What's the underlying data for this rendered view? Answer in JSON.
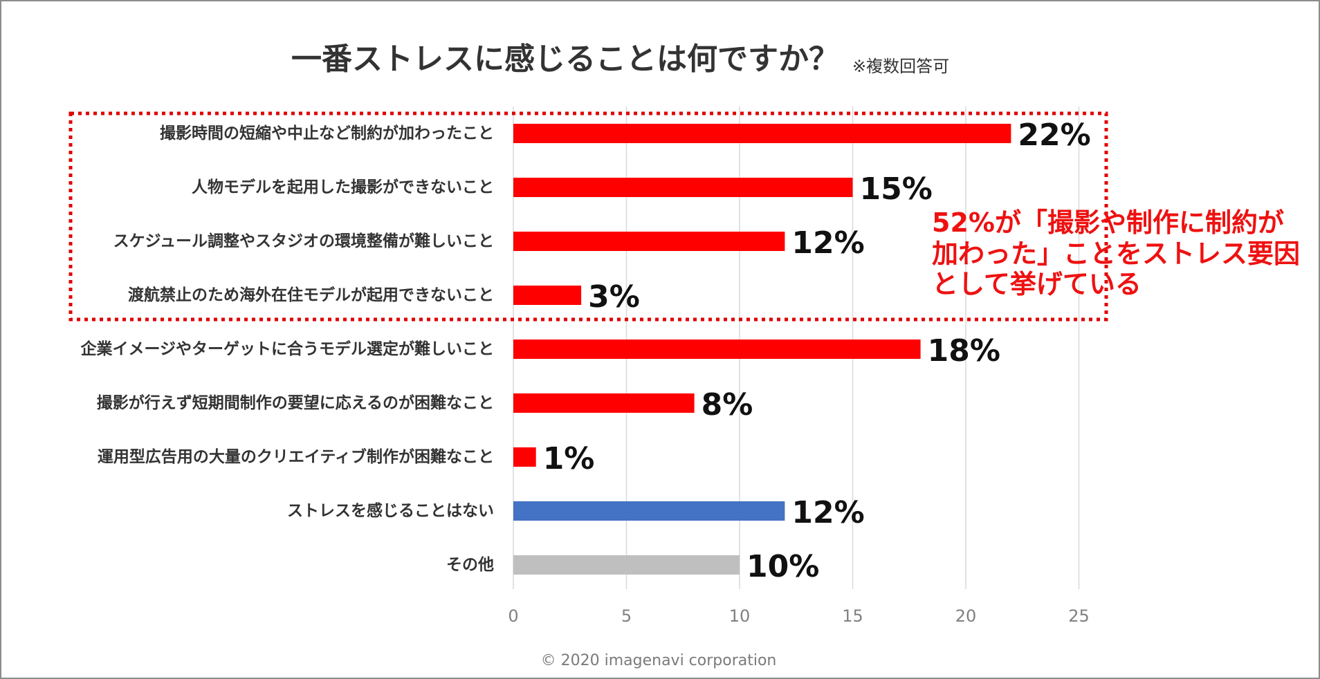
{
  "chart_data": {
    "type": "bar",
    "orientation": "horizontal",
    "title": "一番ストレスに感じることは何ですか？",
    "subtitle": "※複数回答可",
    "categories": [
      "撮影時間の短縮や中止など制約が加わったこと",
      "人物モデルを起用した撮影ができないこと",
      "スケジュール調整やスタジオの環境整備が難しいこと",
      "渡航禁止のため海外在住モデルが起用できないこと",
      "企業イメージやターゲットに合うモデル選定が難しいこと",
      "撮影が行えず短期間制作の要望に応えるのが困難なこと",
      "運用型広告用の大量のクリエイティブ制作が困難なこと",
      "ストレスを感じることはない",
      "その他"
    ],
    "values": [
      22,
      15,
      12,
      3,
      18,
      8,
      1,
      12,
      10
    ],
    "value_labels": [
      "22%",
      "15%",
      "12%",
      "3%",
      "18%",
      "8%",
      "1%",
      "12%",
      "10%"
    ],
    "bar_colors": [
      "#ff0000",
      "#ff0000",
      "#ff0000",
      "#ff0000",
      "#ff0000",
      "#ff0000",
      "#ff0000",
      "#4472c4",
      "#bfbfbf"
    ],
    "xlim": [
      0,
      25
    ],
    "x_ticks": [
      0,
      5,
      10,
      15,
      20,
      25
    ],
    "grid": "vertical",
    "highlight_group": [
      0,
      1,
      2,
      3
    ],
    "highlight_color": "#e00000",
    "annotation": [
      "52%が「撮影や制作に制約が",
      "加わった」ことをストレス要因",
      "として挙げている"
    ],
    "annotation_color": "#ee1111"
  },
  "footer": {
    "copyright": "© 2020 imagenavi corporation"
  }
}
